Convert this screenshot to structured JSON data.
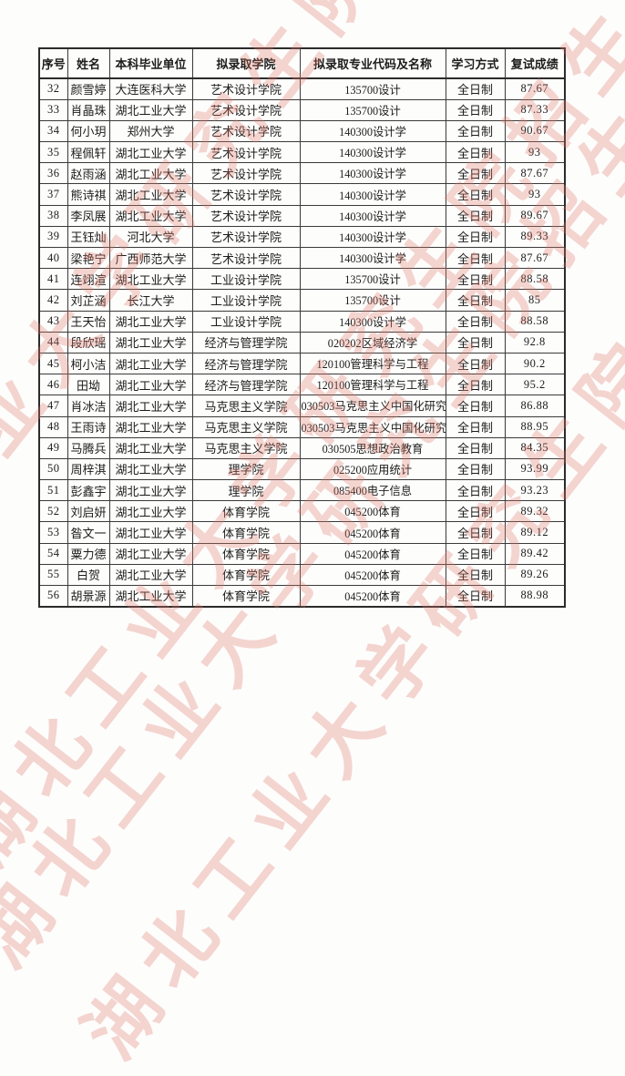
{
  "watermark": {
    "text": "湖北工业大学研究生院招生办",
    "color": "#e0796a",
    "opacity": 0.3
  },
  "table": {
    "headers": [
      "序号",
      "姓名",
      "本科毕业单位",
      "拟录取学院",
      "拟录取专业代码及名称",
      "学习方式",
      "复试成绩"
    ],
    "rows": [
      [
        "32",
        "颜雪婷",
        "大连医科大学",
        "艺术设计学院",
        "135700设计",
        "全日制",
        "87.67"
      ],
      [
        "33",
        "肖晶珠",
        "湖北工业大学",
        "艺术设计学院",
        "135700设计",
        "全日制",
        "87.33"
      ],
      [
        "34",
        "何小玥",
        "郑州大学",
        "艺术设计学院",
        "140300设计学",
        "全日制",
        "90.67"
      ],
      [
        "35",
        "程佩轩",
        "湖北工业大学",
        "艺术设计学院",
        "140300设计学",
        "全日制",
        "93"
      ],
      [
        "36",
        "赵雨涵",
        "湖北工业大学",
        "艺术设计学院",
        "140300设计学",
        "全日制",
        "87.67"
      ],
      [
        "37",
        "熊诗祺",
        "湖北工业大学",
        "艺术设计学院",
        "140300设计学",
        "全日制",
        "93"
      ],
      [
        "38",
        "李凤展",
        "湖北工业大学",
        "艺术设计学院",
        "140300设计学",
        "全日制",
        "89.67"
      ],
      [
        "39",
        "王钰灿",
        "河北大学",
        "艺术设计学院",
        "140300设计学",
        "全日制",
        "89.33"
      ],
      [
        "40",
        "梁艳宁",
        "广西师范大学",
        "艺术设计学院",
        "140300设计学",
        "全日制",
        "87.67"
      ],
      [
        "41",
        "连翊渲",
        "湖北工业大学",
        "工业设计学院",
        "135700设计",
        "全日制",
        "88.58"
      ],
      [
        "42",
        "刘芷涵",
        "长江大学",
        "工业设计学院",
        "135700设计",
        "全日制",
        "85"
      ],
      [
        "43",
        "王天怡",
        "湖北工业大学",
        "工业设计学院",
        "140300设计学",
        "全日制",
        "88.58"
      ],
      [
        "44",
        "段欣瑶",
        "湖北工业大学",
        "经济与管理学院",
        "020202区域经济学",
        "全日制",
        "92.8"
      ],
      [
        "45",
        "柯小洁",
        "湖北工业大学",
        "经济与管理学院",
        "120100管理科学与工程",
        "全日制",
        "90.2"
      ],
      [
        "46",
        "田坳",
        "湖北工业大学",
        "经济与管理学院",
        "120100管理科学与工程",
        "全日制",
        "95.2"
      ],
      [
        "47",
        "肖冰洁",
        "湖北工业大学",
        "马克思主义学院",
        "030503马克思主义中国化研究",
        "全日制",
        "86.88"
      ],
      [
        "48",
        "王雨诗",
        "湖北工业大学",
        "马克思主义学院",
        "030503马克思主义中国化研究",
        "全日制",
        "88.95"
      ],
      [
        "49",
        "马腾兵",
        "湖北工业大学",
        "马克思主义学院",
        "030505思想政治教育",
        "全日制",
        "84.35"
      ],
      [
        "50",
        "周梓淇",
        "湖北工业大学",
        "理学院",
        "025200应用统计",
        "全日制",
        "93.99"
      ],
      [
        "51",
        "彭鑫宇",
        "湖北工业大学",
        "理学院",
        "085400电子信息",
        "全日制",
        "93.23"
      ],
      [
        "52",
        "刘启妍",
        "湖北工业大学",
        "体育学院",
        "045200体育",
        "全日制",
        "89.32"
      ],
      [
        "53",
        "昝文一",
        "湖北工业大学",
        "体育学院",
        "045200体育",
        "全日制",
        "89.12"
      ],
      [
        "54",
        "粟力德",
        "湖北工业大学",
        "体育学院",
        "045200体育",
        "全日制",
        "89.42"
      ],
      [
        "55",
        "白贺",
        "湖北工业大学",
        "体育学院",
        "045200体育",
        "全日制",
        "89.26"
      ],
      [
        "56",
        "胡景源",
        "湖北工业大学",
        "体育学院",
        "045200体育",
        "全日制",
        "88.98"
      ]
    ],
    "column_keys": [
      "index",
      "name",
      "undergrad-school",
      "admitted-college",
      "major-code-name",
      "study-mode",
      "exam-score"
    ]
  }
}
